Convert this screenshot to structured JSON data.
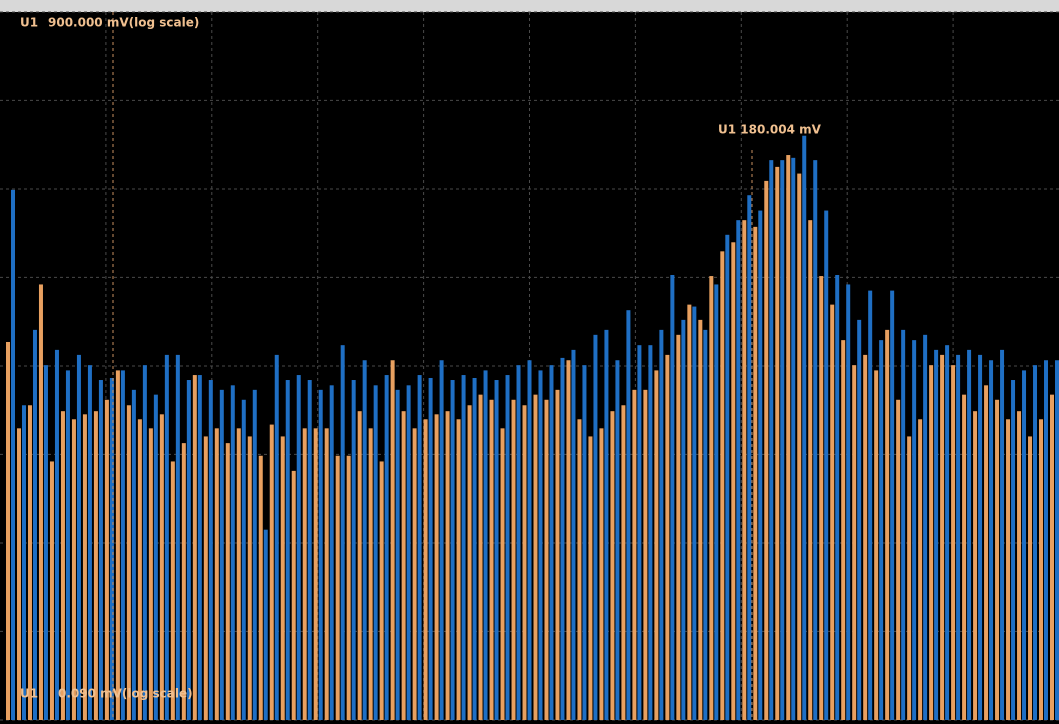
{
  "chart_data": {
    "type": "bar",
    "channel": "U1",
    "top_label": "900.000 mV(log scale)",
    "bottom_label": "0.090 mV(log scale)",
    "marker_label": "U1 180.004 mV",
    "log_scale": true,
    "grid": true,
    "ylim": [
      0.09,
      900
    ],
    "yticks": [
      0.09,
      0.285,
      0.9,
      2.85,
      9,
      28.5,
      90,
      285,
      900
    ],
    "series": [
      {
        "color": "#e8a060",
        "values": [
          12.3,
          4.0,
          5.4,
          26,
          2.6,
          5.0,
          4.5,
          4.8,
          5.0,
          5.8,
          8.5,
          5.4,
          4.5,
          4.0,
          4.8,
          2.6,
          3.3,
          8.0,
          3.6,
          4.0,
          3.3,
          4.0,
          3.6,
          2.8,
          4.2,
          3.6,
          2.3,
          4.0,
          4.0,
          4.0,
          2.8,
          2.8,
          5.0,
          4.0,
          2.6,
          9.7,
          5.0,
          4.0,
          4.5,
          4.8,
          5.0,
          4.5,
          5.4,
          6.2,
          5.8,
          4.0,
          5.8,
          5.4,
          6.2,
          5.8,
          6.6,
          9.7,
          4.5,
          3.6,
          4.0,
          5.0,
          5.4,
          6.6,
          6.6,
          8.5,
          10.4,
          13.5,
          20,
          16.4,
          29,
          40,
          45,
          60,
          55,
          100,
          120,
          140,
          110,
          60,
          29,
          20,
          12.6,
          9.1,
          10.4,
          8.5,
          14.4,
          5.8,
          3.6,
          4.5,
          9.1,
          10.4,
          9.1,
          6.2,
          5.0,
          7.0,
          5.8,
          4.5,
          5.0,
          3.6,
          4.5,
          6.2
        ]
      },
      {
        "color": "#1f6fc4",
        "values": [
          89,
          5.4,
          14.4,
          9.1,
          11.1,
          8.5,
          10.4,
          9.1,
          7.5,
          7.7,
          8.5,
          6.6,
          9.1,
          6.2,
          10.4,
          10.4,
          7.5,
          8.0,
          7.5,
          6.6,
          7.0,
          5.8,
          6.6,
          1.07,
          10.4,
          7.5,
          8.0,
          7.5,
          6.6,
          7.0,
          11.8,
          7.5,
          9.7,
          7.0,
          8.0,
          6.6,
          7.0,
          8.0,
          7.7,
          9.7,
          7.5,
          8.0,
          7.7,
          8.5,
          7.5,
          8.0,
          9.1,
          9.7,
          8.5,
          9.1,
          10.0,
          11.1,
          9.1,
          13.5,
          14.4,
          9.7,
          18.6,
          11.8,
          11.8,
          14.4,
          29.4,
          16.4,
          19.5,
          14.4,
          26,
          49.6,
          60,
          83,
          68,
          131,
          131,
          135,
          180,
          131,
          68,
          29.4,
          26,
          16.4,
          24,
          12.6,
          24,
          14.4,
          12.6,
          13.5,
          11.1,
          11.8,
          10.4,
          11.1,
          10.4,
          9.7,
          11.1,
          7.5,
          8.5,
          9.1,
          9.7,
          9.7
        ]
      }
    ]
  }
}
